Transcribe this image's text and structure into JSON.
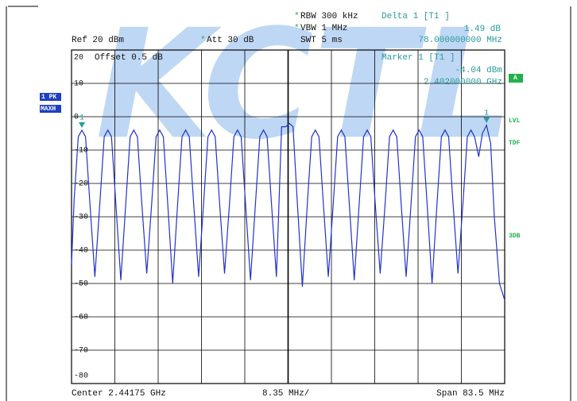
{
  "page": {
    "star": "*",
    "rbw": "RBW 300 kHz",
    "vbw": "VBW 1 MHz",
    "swt": "SWT 5 ms",
    "delta_title": "Delta 1 [T1 ]",
    "delta_level": "1.49 dB",
    "delta_freq": "78.000000000 MHz",
    "ref": "Ref  20 dBm",
    "att": "Att  30 dB",
    "offset": "Offset  0.5 dB",
    "marker_title": "Marker 1 [T1 ]",
    "marker_level": "-4.04 dBm",
    "marker_freq": "2.402000000 GHz",
    "trace_mode": "1 PK",
    "trace_detector": "MAXH",
    "side_a": "A",
    "side_lvl": "LVL",
    "side_tdf": "TDF",
    "side_3db": "3DB",
    "center": "Center 2.44175 GHz",
    "div": "8.35 MHz/",
    "span": "Span 83.5 MHz",
    "watermark": "KCTL"
  },
  "chart_data": {
    "type": "line",
    "color": "#2233cc",
    "xlim": [
      2.4,
      2.4835
    ],
    "ylim": [
      -80,
      20
    ],
    "yticks": [
      20,
      10,
      0,
      -10,
      -20,
      -30,
      -40,
      -50,
      -60,
      -70,
      -80
    ],
    "grid": true,
    "markers": [
      {
        "label": "1",
        "x": 2.402,
        "y": -4.04,
        "color": "#2a9a9a"
      },
      {
        "label": "1",
        "x": 2.48,
        "y": -2.55,
        "color": "#2a9a9a"
      }
    ],
    "x": [
      2.4,
      2.4005,
      2.4013,
      2.402,
      2.4027,
      2.4035,
      2.4045,
      2.4055,
      2.4063,
      2.407,
      2.4077,
      2.4085,
      2.4095,
      2.4105,
      2.4113,
      2.412,
      2.4127,
      2.4135,
      2.4145,
      2.4155,
      2.4163,
      2.417,
      2.4177,
      2.4185,
      2.4195,
      2.4205,
      2.4213,
      2.422,
      2.4227,
      2.4235,
      2.4245,
      2.4255,
      2.4263,
      2.427,
      2.4277,
      2.4285,
      2.4295,
      2.4305,
      2.4313,
      2.432,
      2.4327,
      2.4335,
      2.4345,
      2.4355,
      2.4363,
      2.437,
      2.4377,
      2.4385,
      2.4395,
      2.4405,
      2.4413,
      2.442,
      2.4427,
      2.4435,
      2.4445,
      2.4455,
      2.4463,
      2.447,
      2.4477,
      2.4485,
      2.4495,
      2.4505,
      2.4513,
      2.452,
      2.4527,
      2.4535,
      2.4545,
      2.4555,
      2.4563,
      2.457,
      2.4577,
      2.4585,
      2.4595,
      2.4605,
      2.4613,
      2.462,
      2.4627,
      2.4635,
      2.4645,
      2.4655,
      2.4663,
      2.467,
      2.4677,
      2.4685,
      2.4695,
      2.4705,
      2.4713,
      2.472,
      2.4727,
      2.4735,
      2.4745,
      2.4755,
      2.4763,
      2.477,
      2.4777,
      2.4785,
      2.4792,
      2.48,
      2.4808,
      2.4815,
      2.4825,
      2.4835
    ],
    "values": [
      -44,
      -25,
      -6,
      -4.04,
      -6,
      -25,
      -48,
      -25,
      -6,
      -4,
      -6,
      -25,
      -49,
      -25,
      -6,
      -4,
      -6,
      -25,
      -47,
      -25,
      -6,
      -4,
      -6,
      -25,
      -50,
      -25,
      -6,
      -4,
      -6,
      -25,
      -48,
      -25,
      -6,
      -4,
      -6,
      -25,
      -47,
      -25,
      -6,
      -4,
      -6,
      -25,
      -49,
      -25,
      -6,
      -4,
      -6,
      -25,
      -48,
      -3,
      -3,
      -2,
      -3,
      -25,
      -51,
      -25,
      -6,
      -4,
      -6,
      -25,
      -48,
      -25,
      -6,
      -4,
      -6,
      -25,
      -49,
      -25,
      -6,
      -4,
      -6,
      -25,
      -47,
      -25,
      -6,
      -4,
      -6,
      -25,
      -48,
      -25,
      -6,
      -4,
      -6,
      -25,
      -50,
      -25,
      -6,
      -4,
      -6,
      -25,
      -47,
      -25,
      -6,
      -4,
      -6,
      -12,
      -5,
      -2.55,
      -8,
      -30,
      -50,
      -55
    ]
  }
}
